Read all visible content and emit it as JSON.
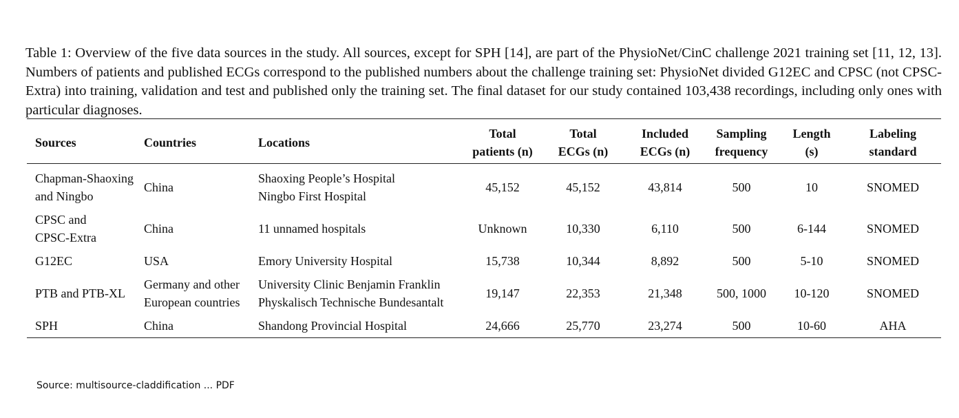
{
  "caption": "Table 1: Overview of the five data sources in the study. All sources, except for SPH [14], are part of the PhysioNet/CinC challenge 2021 training set [11, 12, 13]. Numbers of patients and published ECGs correspond to the published numbers about the challenge training set: PhysioNet divided G12EC and CPSC (not CPSC-Extra) into training, validation and test and published only the training set. The final dataset for our study contained 103,438 recordings, including only ones with particular diagnoses.",
  "table": {
    "headers": [
      [
        "Sources"
      ],
      [
        "Countries"
      ],
      [
        "Locations"
      ],
      [
        "Total",
        "patients (n)"
      ],
      [
        "Total",
        "ECGs (n)"
      ],
      [
        "Included",
        "ECGs (n)"
      ],
      [
        "Sampling",
        "frequency"
      ],
      [
        "Length",
        "(s)"
      ],
      [
        "Labeling",
        "standard"
      ]
    ],
    "rows": [
      {
        "source": [
          "Chapman-Shaoxing",
          "and Ningbo"
        ],
        "countries": [
          "China"
        ],
        "locations": [
          "Shaoxing People’s Hospital",
          "Ningbo First Hospital"
        ],
        "total_patients": "45,152",
        "total_ecgs": "45,152",
        "included_ecgs": "43,814",
        "sampling_frequency": "500",
        "length": "10",
        "labeling_standard": "SNOMED"
      },
      {
        "source": [
          "CPSC and",
          "CPSC-Extra"
        ],
        "countries": [
          "China"
        ],
        "locations": [
          "11 unnamed hospitals"
        ],
        "total_patients": "Unknown",
        "total_ecgs": "10,330",
        "included_ecgs": "6,110",
        "sampling_frequency": "500",
        "length": "6-144",
        "labeling_standard": "SNOMED"
      },
      {
        "source": [
          "G12EC"
        ],
        "countries": [
          "USA"
        ],
        "locations": [
          "Emory University Hospital"
        ],
        "total_patients": "15,738",
        "total_ecgs": "10,344",
        "included_ecgs": "8,892",
        "sampling_frequency": "500",
        "length": "5-10",
        "labeling_standard": "SNOMED"
      },
      {
        "source": [
          "PTB and PTB-XL"
        ],
        "countries": [
          "Germany and other",
          "European countries"
        ],
        "locations": [
          "University Clinic Benjamin Franklin",
          "Physkalisch Technische Bundesantalt"
        ],
        "total_patients": "19,147",
        "total_ecgs": "22,353",
        "included_ecgs": "21,348",
        "sampling_frequency": "500, 1000",
        "length": "10-120",
        "labeling_standard": "SNOMED"
      },
      {
        "source": [
          "SPH"
        ],
        "countries": [
          "China"
        ],
        "locations": [
          "Shandong Provincial Hospital"
        ],
        "total_patients": "24,666",
        "total_ecgs": "25,770",
        "included_ecgs": "23,274",
        "sampling_frequency": "500",
        "length": "10-60",
        "labeling_standard": "AHA"
      }
    ]
  },
  "source_note": "Source: multisource-claddification ... PDF"
}
